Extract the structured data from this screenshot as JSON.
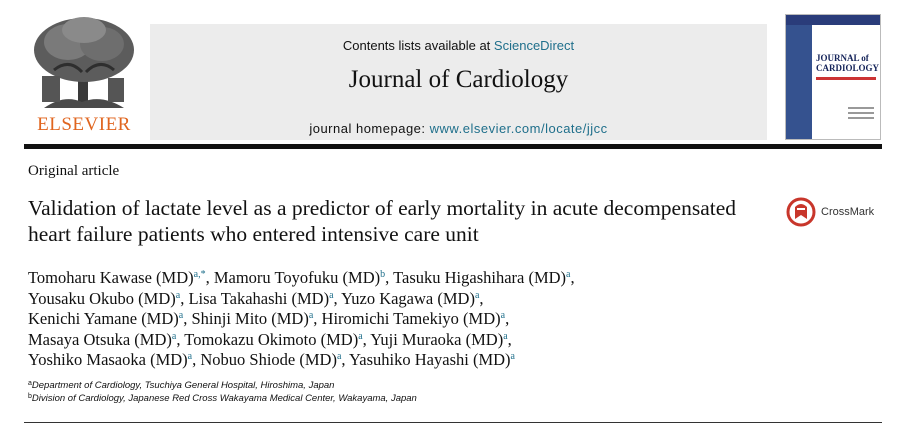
{
  "publisher": {
    "name": "ELSEVIER"
  },
  "banner": {
    "contents_prefix": "Contents lists available at",
    "contents_link": "ScienceDirect",
    "journal_title": "Journal of Cardiology",
    "homepage_prefix": "journal homepage:",
    "homepage_url": "www.elsevier.com/locate/jjcc"
  },
  "cover": {
    "title_line1": "JOURNAL of",
    "title_line2": "CARDIOLOGY"
  },
  "article": {
    "type": "Original article",
    "title": "Validation of lactate level as a predictor of early mortality in acute decompensated heart failure patients who entered intensive care unit",
    "crossmark_label": "CrossMark"
  },
  "authors": [
    {
      "name": "Tomoharu Kawase (MD)",
      "aff": "a,*",
      "sep": ", "
    },
    {
      "name": "Mamoru Toyofuku (MD)",
      "aff": "b",
      "sep": ", "
    },
    {
      "name": "Tasuku Higashihara (MD)",
      "aff": "a",
      "sep": ","
    },
    {
      "name": "Yousaku Okubo (MD)",
      "aff": "a",
      "sep": ", "
    },
    {
      "name": "Lisa Takahashi (MD)",
      "aff": "a",
      "sep": ", "
    },
    {
      "name": "Yuzo Kagawa (MD)",
      "aff": "a",
      "sep": ","
    },
    {
      "name": "Kenichi Yamane (MD)",
      "aff": "a",
      "sep": ", "
    },
    {
      "name": "Shinji Mito (MD)",
      "aff": "a",
      "sep": ", "
    },
    {
      "name": "Hiromichi Tamekiyo (MD)",
      "aff": "a",
      "sep": ","
    },
    {
      "name": "Masaya Otsuka (MD)",
      "aff": "a",
      "sep": ", "
    },
    {
      "name": "Tomokazu Okimoto (MD)",
      "aff": "a",
      "sep": ", "
    },
    {
      "name": "Yuji Muraoka (MD)",
      "aff": "a",
      "sep": ","
    },
    {
      "name": "Yoshiko Masaoka (MD)",
      "aff": "a",
      "sep": ", "
    },
    {
      "name": "Nobuo Shiode (MD)",
      "aff": "a",
      "sep": ", "
    },
    {
      "name": "Yasuhiko Hayashi (MD)",
      "aff": "a",
      "sep": ""
    }
  ],
  "author_line_breaks": [
    2,
    5,
    8,
    11
  ],
  "affiliations": [
    {
      "mark": "a",
      "text": "Department of Cardiology, Tsuchiya General Hospital, Hiroshima, Japan"
    },
    {
      "mark": "b",
      "text": "Division of Cardiology, Japanese Red Cross Wakayama Medical Center, Wakayama, Japan"
    }
  ],
  "colors": {
    "publisher_orange": "#e0651f",
    "link_teal": "#1f6f8b",
    "banner_gray": "#ececec"
  }
}
